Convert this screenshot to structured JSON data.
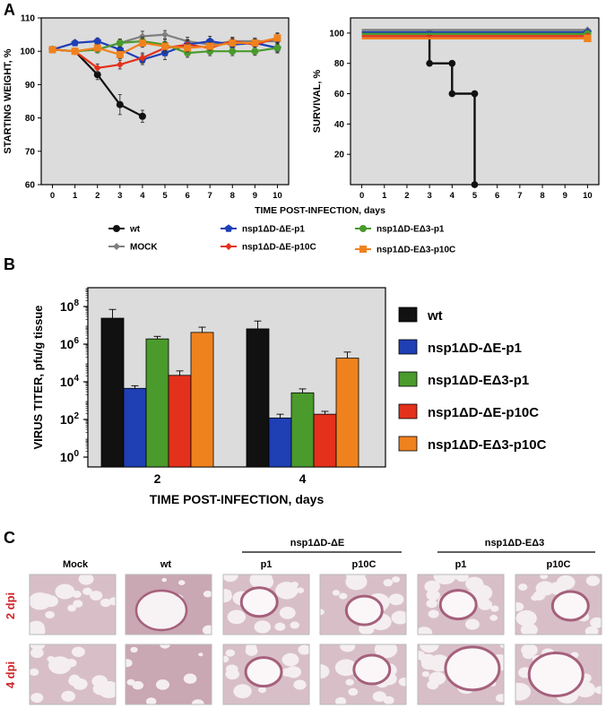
{
  "panel_labels": {
    "a": "A",
    "b": "B",
    "c": "C"
  },
  "colors": {
    "wt": "#111111",
    "mock": "#7f7f7f",
    "de_p1": "#1f3fb5",
    "de_p10c": "#e3311c",
    "de3_p1": "#4a9a2c",
    "de3_p10c": "#f0821e",
    "plot_bg": "#dcdcdc",
    "dpi_label": "#d0262a"
  },
  "chart_data": [
    {
      "type": "line",
      "ylabel": "STARTING WEIGHT, %",
      "xlabel": "TIME POST-INFECTION, days",
      "x": [
        0,
        1,
        2,
        3,
        4,
        5,
        6,
        7,
        8,
        9,
        10
      ],
      "xlim": [
        -0.5,
        10.5
      ],
      "ylim": [
        60,
        110
      ],
      "yticks": [
        60,
        70,
        80,
        90,
        100,
        110
      ],
      "series": [
        {
          "name": "wt",
          "x": [
            0,
            1,
            2,
            3,
            4
          ],
          "values": [
            100.5,
            100,
            93,
            84,
            80.5
          ],
          "err": [
            0.6,
            0.8,
            1.5,
            3,
            1.8
          ]
        },
        {
          "name": "MOCK",
          "x": [
            0,
            1,
            2,
            3,
            4,
            5,
            6,
            7,
            8,
            9,
            10
          ],
          "values": [
            100.5,
            100,
            100.5,
            102.5,
            104.5,
            105,
            103,
            102,
            103,
            103,
            103
          ],
          "err": [
            0.5,
            0.6,
            0.8,
            1,
            1.5,
            1.2,
            1.2,
            1,
            1,
            1,
            1
          ]
        },
        {
          "name": "nsp1ΔD-ΔE-p1",
          "x": [
            0,
            1,
            2,
            3,
            4,
            5,
            6,
            7,
            8,
            9,
            10
          ],
          "values": [
            100.5,
            102.5,
            103,
            100.5,
            97.5,
            99.5,
            102,
            103,
            102,
            102.5,
            101
          ],
          "err": [
            0.5,
            0.8,
            1,
            1.5,
            1.5,
            2,
            1.5,
            1.5,
            1.2,
            1.2,
            1.5
          ]
        },
        {
          "name": "nsp1ΔD-ΔE-p10C",
          "x": [
            0,
            1,
            2,
            3,
            4,
            5,
            6,
            7,
            8,
            9,
            10
          ],
          "values": [
            100.5,
            100,
            95,
            96,
            98,
            101,
            102,
            101,
            103,
            102,
            104
          ],
          "err": [
            0.5,
            0.8,
            1.2,
            1.3,
            1.5,
            1.5,
            1.2,
            1.2,
            1.2,
            1.2,
            1.5
          ]
        },
        {
          "name": "nsp1ΔD-EΔ3-p1",
          "x": [
            0,
            1,
            2,
            3,
            4,
            5,
            6,
            7,
            8,
            9,
            10
          ],
          "values": [
            100.5,
            100,
            100.5,
            102.5,
            103,
            102,
            99.5,
            100,
            100,
            100,
            101
          ],
          "err": [
            0.5,
            0.6,
            1,
            1.2,
            1.3,
            1.5,
            1.3,
            1.3,
            1.3,
            1.2,
            1.2
          ]
        },
        {
          "name": "nsp1ΔD-EΔ3-p10C",
          "x": [
            0,
            1,
            2,
            3,
            4,
            5,
            6,
            7,
            8,
            9,
            10
          ],
          "values": [
            100.5,
            100,
            101,
            99,
            102.5,
            101.5,
            101,
            101.5,
            102.5,
            102.5,
            104
          ],
          "err": [
            0.5,
            0.6,
            1,
            1.2,
            1.3,
            1.3,
            1.2,
            1.2,
            1.2,
            1.2,
            1.3
          ]
        }
      ]
    },
    {
      "type": "line",
      "ylabel": "SURVIVAL, %",
      "x": [
        0,
        1,
        2,
        3,
        4,
        5,
        6,
        7,
        8,
        9,
        10
      ],
      "xlim": [
        -0.5,
        10.5
      ],
      "ylim": [
        0,
        110
      ],
      "yticks": [
        20,
        40,
        60,
        80,
        100
      ],
      "series": [
        {
          "name": "wt",
          "x": [
            3,
            3,
            4,
            4,
            5,
            5
          ],
          "values": [
            100,
            80,
            80,
            60,
            60,
            0
          ]
        },
        {
          "name": "MOCK",
          "x": [
            0,
            10
          ],
          "values": [
            102,
            102
          ]
        },
        {
          "name": "nsp1ΔD-ΔE-p1",
          "x": [
            0,
            10
          ],
          "values": [
            100.5,
            100.5
          ]
        },
        {
          "name": "nsp1ΔD-EΔ3-p1",
          "x": [
            0,
            10
          ],
          "values": [
            99.5,
            99.5
          ]
        },
        {
          "name": "nsp1ΔD-ΔE-p10C",
          "x": [
            0,
            10
          ],
          "values": [
            98,
            98
          ]
        },
        {
          "name": "nsp1ΔD-EΔ3-p10C",
          "x": [
            0,
            10
          ],
          "values": [
            96.5,
            96.5
          ]
        }
      ]
    },
    {
      "type": "bar",
      "ylabel": "VIRUS TITER, pfu/g tissue",
      "xlabel": "TIME POST-INFECTION, days",
      "categories": [
        "2",
        "4"
      ],
      "yscale": "log",
      "ylim": [
        0.3,
        1000000000.0
      ],
      "yticks": [
        {
          "base": "10",
          "exp": "0"
        },
        {
          "base": "10",
          "exp": "2"
        },
        {
          "base": "10",
          "exp": "4"
        },
        {
          "base": "10",
          "exp": "6"
        },
        {
          "base": "10",
          "exp": "8"
        }
      ],
      "series": [
        {
          "name": "wt",
          "values": [
            24000000.0,
            6500000.0
          ],
          "err_hi": [
            70000000.0,
            17000000.0
          ]
        },
        {
          "name": "nsp1ΔD-ΔE-p1",
          "values": [
            4500,
            120
          ],
          "err_hi": [
            6200,
            190
          ]
        },
        {
          "name": "nsp1ΔD-EΔ3-p1",
          "values": [
            1900000.0,
            2600
          ],
          "err_hi": [
            2600000.0,
            4200
          ]
        },
        {
          "name": "nsp1ΔD-ΔE-p10C",
          "values": [
            22000,
            190
          ],
          "err_hi": [
            38000,
            270
          ]
        },
        {
          "name": "nsp1ΔD-EΔ3-p10C",
          "values": [
            4200000.0,
            180000.0
          ],
          "err_hi": [
            8000000.0,
            380000.0
          ]
        }
      ]
    }
  ],
  "legend_a": [
    {
      "label": "wt",
      "key": "wt",
      "marker": "circle"
    },
    {
      "label": "MOCK",
      "key": "mock",
      "marker": "diamond"
    },
    {
      "label": "nsp1ΔD-ΔE-p1",
      "key": "de_p1",
      "marker": "pentagon"
    },
    {
      "label": "nsp1ΔD-ΔE-p10C",
      "key": "de_p10c",
      "marker": "diamond"
    },
    {
      "label": "nsp1ΔD-EΔ3-p1",
      "key": "de3_p1",
      "marker": "circle"
    },
    {
      "label": "nsp1ΔD-EΔ3-p10C",
      "key": "de3_p10c",
      "marker": "square"
    }
  ],
  "legend_b": [
    {
      "label": "wt",
      "key": "wt"
    },
    {
      "label": "nsp1ΔD-ΔE-p1",
      "key": "de_p1"
    },
    {
      "label": "nsp1ΔD-EΔ3-p1",
      "key": "de3_p1"
    },
    {
      "label": "nsp1ΔD-ΔE-p10C",
      "key": "de_p10c"
    },
    {
      "label": "nsp1ΔD-EΔ3-p10C",
      "key": "de3_p10c"
    }
  ],
  "panel_c": {
    "columns": [
      "Mock",
      "wt",
      "p1",
      "p10C",
      "p1",
      "p10C"
    ],
    "groups": [
      "nsp1ΔD-ΔE",
      "nsp1ΔD-EΔ3"
    ],
    "rows": [
      "2 dpi",
      "4 dpi"
    ]
  }
}
